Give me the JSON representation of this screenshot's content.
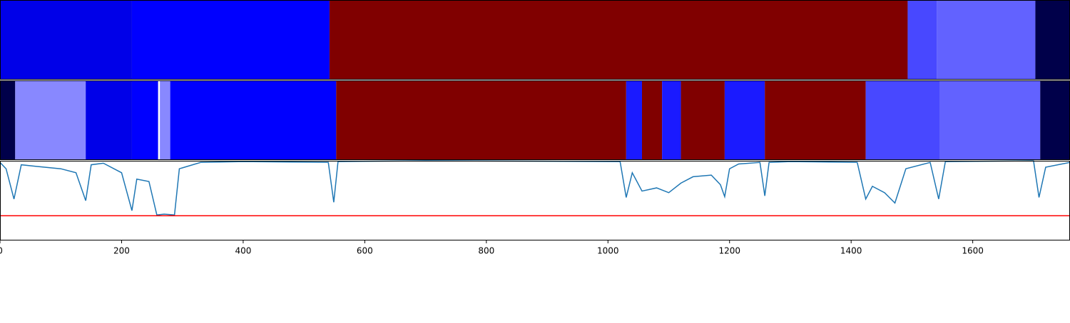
{
  "chart_data": [
    {
      "type": "segments",
      "xlim": [
        0,
        1760
      ],
      "bands": [
        {
          "start": 0,
          "end": 217,
          "color": "#0000e8"
        },
        {
          "start": 217,
          "end": 542,
          "color": "#0000ff"
        },
        {
          "start": 542,
          "end": 1493,
          "color": "#800000"
        },
        {
          "start": 1493,
          "end": 1541,
          "color": "#4848ff"
        },
        {
          "start": 1541,
          "end": 1703,
          "color": "#6262ff"
        },
        {
          "start": 1703,
          "end": 1760,
          "color": "#00004a"
        }
      ]
    },
    {
      "type": "segments",
      "xlim": [
        0,
        1760
      ],
      "bands": [
        {
          "start": 0,
          "end": 25,
          "color": "#00004a"
        },
        {
          "start": 25,
          "end": 141,
          "color": "#8888ff"
        },
        {
          "start": 141,
          "end": 217,
          "color": "#0000e8"
        },
        {
          "start": 217,
          "end": 260,
          "color": "#0000ff"
        },
        {
          "start": 263,
          "end": 280,
          "color": "#8888ff"
        },
        {
          "start": 280,
          "end": 553,
          "color": "#0000ff"
        },
        {
          "start": 553,
          "end": 1030,
          "color": "#800000"
        },
        {
          "start": 1030,
          "end": 1056,
          "color": "#1a1aff"
        },
        {
          "start": 1056,
          "end": 1089,
          "color": "#800000"
        },
        {
          "start": 1089,
          "end": 1120,
          "color": "#1a1aff"
        },
        {
          "start": 1120,
          "end": 1192,
          "color": "#800000"
        },
        {
          "start": 1192,
          "end": 1258,
          "color": "#1a1aff"
        },
        {
          "start": 1258,
          "end": 1424,
          "color": "#800000"
        },
        {
          "start": 1424,
          "end": 1546,
          "color": "#4848ff"
        },
        {
          "start": 1546,
          "end": 1711,
          "color": "#6262ff"
        },
        {
          "start": 1711,
          "end": 1760,
          "color": "#00004a"
        }
      ]
    },
    {
      "type": "line",
      "xlim": [
        0,
        1760
      ],
      "ylim": [
        0,
        1
      ],
      "color": "#1f77b4",
      "threshold": 0.31,
      "threshold_color": "#ff0000",
      "xticks": [
        0,
        200,
        400,
        600,
        800,
        1000,
        1200,
        1400,
        1600
      ],
      "x": [
        0,
        10,
        23,
        35,
        60,
        100,
        125,
        141,
        150,
        170,
        200,
        217,
        225,
        245,
        258,
        270,
        287,
        295,
        330,
        400,
        540,
        549,
        556,
        700,
        1020,
        1030,
        1040,
        1056,
        1080,
        1100,
        1120,
        1140,
        1170,
        1185,
        1192,
        1200,
        1215,
        1250,
        1258,
        1265,
        1300,
        1410,
        1424,
        1435,
        1455,
        1472,
        1490,
        1530,
        1544,
        1555,
        1700,
        1709,
        1720,
        1760
      ],
      "values": [
        0.98,
        0.9,
        0.52,
        0.95,
        0.93,
        0.9,
        0.85,
        0.5,
        0.95,
        0.97,
        0.85,
        0.375,
        0.77,
        0.74,
        0.32,
        0.33,
        0.32,
        0.9,
        0.98,
        0.99,
        0.98,
        0.48,
        0.99,
        1.0,
        0.99,
        0.54,
        0.85,
        0.62,
        0.66,
        0.6,
        0.72,
        0.8,
        0.82,
        0.7,
        0.55,
        0.9,
        0.96,
        0.98,
        0.56,
        0.98,
        0.99,
        0.98,
        0.52,
        0.68,
        0.6,
        0.47,
        0.9,
        0.98,
        0.52,
        0.99,
        1.0,
        0.54,
        0.92,
        0.98
      ]
    }
  ]
}
